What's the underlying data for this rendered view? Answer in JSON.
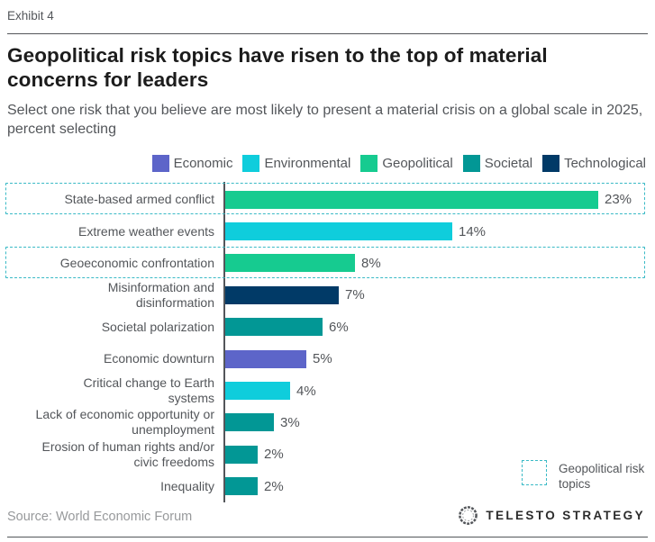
{
  "exhibit_label": "Exhibit 4",
  "title": "Geopolitical risk topics have risen to the top of material concerns for leaders",
  "subtitle": "Select one risk that you believe are most likely to present a material crisis on a global scale in 2025, percent selecting",
  "colors": {
    "Economic": "#5D65C9",
    "Environmental": "#0FCDDC",
    "Geopolitical": "#16CB90",
    "Societal": "#029795",
    "Technological": "#013A67",
    "highlight_dash": "#3ABAC6",
    "axis": "#53565A",
    "text_gray": "#53565A"
  },
  "legend": [
    {
      "label": "Economic"
    },
    {
      "label": "Environmental"
    },
    {
      "label": "Geopolitical"
    },
    {
      "label": "Societal"
    },
    {
      "label": "Technological"
    }
  ],
  "chart_data": {
    "type": "bar",
    "orientation": "horizontal",
    "unit": "percent",
    "xlim": [
      0,
      25
    ],
    "grid": false,
    "categories": [
      "State-based armed conflict",
      "Extreme weather events",
      "Geoeconomic confrontation",
      "Misinformation and disinformation",
      "Societal polarization",
      "Economic downturn",
      "Critical change to Earth systems",
      "Lack of economic opportunity or unemployment",
      "Erosion of human rights and/or civic freedoms",
      "Inequality"
    ],
    "values": [
      23,
      14,
      8,
      7,
      6,
      5,
      4,
      3,
      2,
      2
    ],
    "value_labels": [
      "23%",
      "14%",
      "8%",
      "7%",
      "6%",
      "5%",
      "4%",
      "3%",
      "2%",
      "2%"
    ],
    "series_category": [
      "Geopolitical",
      "Environmental",
      "Geopolitical",
      "Technological",
      "Societal",
      "Economic",
      "Environmental",
      "Societal",
      "Societal",
      "Societal"
    ],
    "highlighted": [
      true,
      false,
      true,
      false,
      false,
      false,
      false,
      false,
      false,
      false
    ],
    "title": "Geopolitical risk topics have risen to the top of material concerns for leaders",
    "xlabel": "",
    "ylabel": ""
  },
  "highlight_legend_label": "Geopolitical risk topics",
  "source": "Source: World Economic Forum",
  "logo_text": "TELESTO STRATEGY"
}
